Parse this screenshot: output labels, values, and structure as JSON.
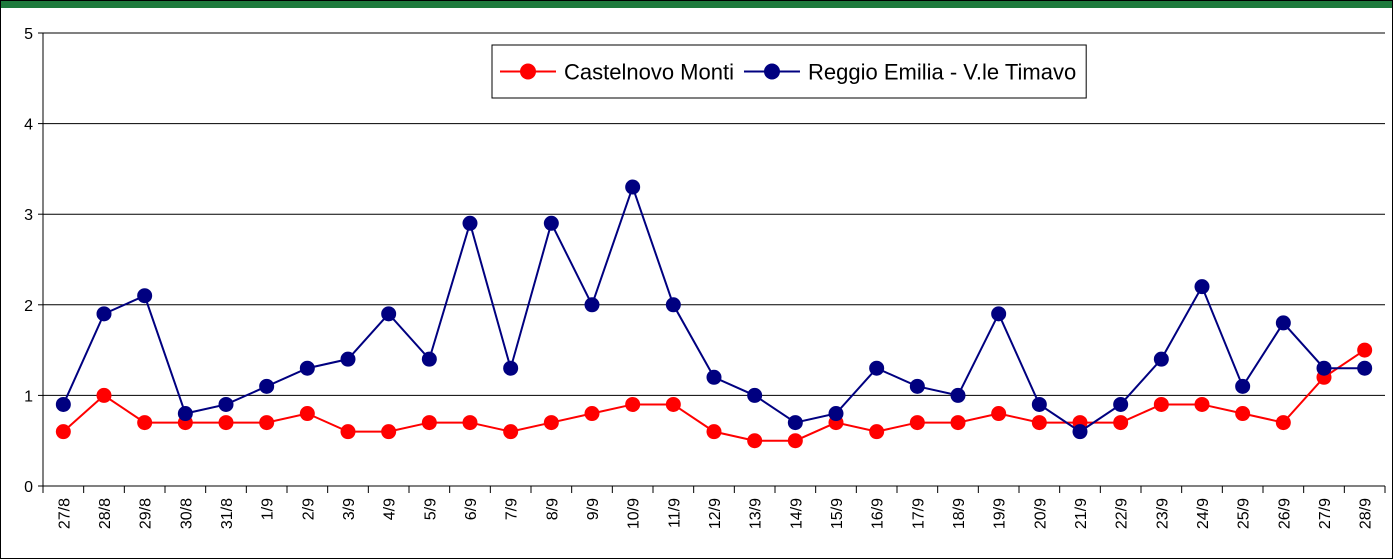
{
  "chart_data": {
    "type": "line",
    "categories": [
      "27/8",
      "28/8",
      "29/8",
      "30/8",
      "31/8",
      "1/9",
      "2/9",
      "3/9",
      "4/9",
      "5/9",
      "6/9",
      "7/9",
      "8/9",
      "9/9",
      "10/9",
      "11/9",
      "12/9",
      "13/9",
      "14/9",
      "15/9",
      "16/9",
      "17/9",
      "18/9",
      "19/9",
      "20/9",
      "21/9",
      "22/9",
      "23/9",
      "24/9",
      "25/9",
      "26/9",
      "27/9",
      "28/9"
    ],
    "series": [
      {
        "name": "Castelnovo Monti",
        "color": "#ff0000",
        "values": [
          0.6,
          1.0,
          0.7,
          0.7,
          0.7,
          0.7,
          0.8,
          0.6,
          0.6,
          0.7,
          0.7,
          0.6,
          0.7,
          0.8,
          0.9,
          0.9,
          0.6,
          0.5,
          0.5,
          0.7,
          0.6,
          0.7,
          0.7,
          0.8,
          0.7,
          0.7,
          0.7,
          0.9,
          0.9,
          0.8,
          0.7,
          1.2,
          1.5
        ]
      },
      {
        "name": "Reggio Emilia - V.le Timavo",
        "color": "#000080",
        "values": [
          0.9,
          1.9,
          2.1,
          0.8,
          0.9,
          1.1,
          1.3,
          1.4,
          1.9,
          1.4,
          2.9,
          1.3,
          2.9,
          2.0,
          3.3,
          2.0,
          1.2,
          1.0,
          0.7,
          0.8,
          1.3,
          1.1,
          1.0,
          1.9,
          0.9,
          0.6,
          0.9,
          1.4,
          2.2,
          1.1,
          1.8,
          1.3,
          1.3
        ]
      }
    ],
    "ylim": [
      0,
      5
    ],
    "yticks": [
      0,
      1,
      2,
      3,
      4,
      5
    ],
    "grid": true,
    "legend": "top"
  }
}
